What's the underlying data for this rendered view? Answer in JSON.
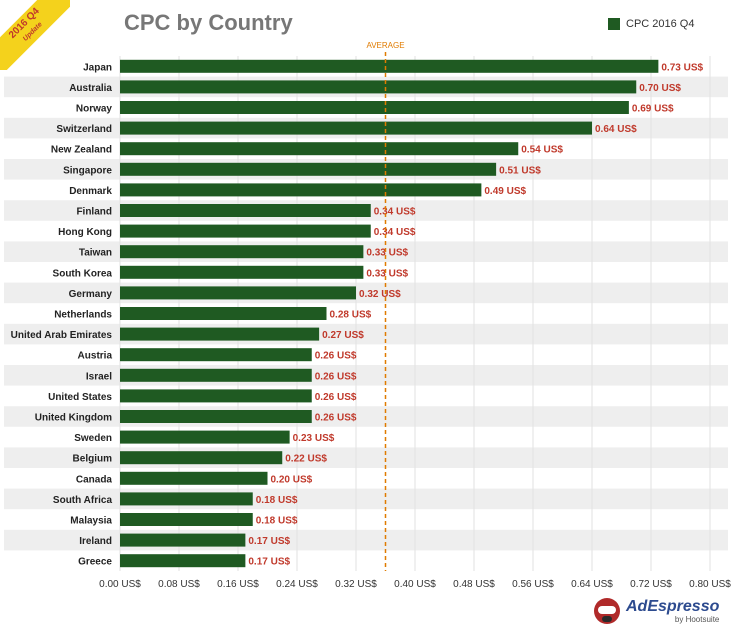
{
  "badge": {
    "line1": "2016 Q4",
    "line2": "Update"
  },
  "legend": {
    "label": "CPC 2016 Q4"
  },
  "logo": {
    "brand": "AdEspresso",
    "sub": "by Hootsuite"
  },
  "colors": {
    "bar": "#1f5a22",
    "value_label": "#c0392b",
    "average_line": "#e07b00",
    "band": "#eeeeee",
    "title": "#777777"
  },
  "chart_data": {
    "type": "bar",
    "orientation": "horizontal",
    "title": "CPC by Country",
    "categories": [
      "Japan",
      "Australia",
      "Norway",
      "Switzerland",
      "New Zealand",
      "Singapore",
      "Denmark",
      "Finland",
      "Hong Kong",
      "Taiwan",
      "South Korea",
      "Germany",
      "Netherlands",
      "United Arab Emirates",
      "Austria",
      "Israel",
      "United States",
      "United Kingdom",
      "Sweden",
      "Belgium",
      "Canada",
      "South Africa",
      "Malaysia",
      "Ireland",
      "Greece"
    ],
    "values": [
      0.73,
      0.7,
      0.69,
      0.64,
      0.54,
      0.51,
      0.49,
      0.34,
      0.34,
      0.33,
      0.33,
      0.32,
      0.28,
      0.27,
      0.26,
      0.26,
      0.26,
      0.26,
      0.23,
      0.22,
      0.2,
      0.18,
      0.18,
      0.17,
      0.17
    ],
    "value_labels": [
      "0.73 US$",
      "0.70 US$",
      "0.69 US$",
      "0.64 US$",
      "0.54 US$",
      "0.51 US$",
      "0.49 US$",
      "0.34 US$",
      "0.34 US$",
      "0.33 US$",
      "0.33 US$",
      "0.32 US$",
      "0.28 US$",
      "0.27 US$",
      "0.26 US$",
      "0.26 US$",
      "0.26 US$",
      "0.26 US$",
      "0.23 US$",
      "0.22 US$",
      "0.20 US$",
      "0.18 US$",
      "0.18 US$",
      "0.17 US$",
      "0.17 US$"
    ],
    "series": [
      {
        "name": "CPC 2016 Q4"
      }
    ],
    "xlim": [
      0,
      0.8
    ],
    "xticks": [
      0,
      0.08,
      0.16,
      0.24,
      0.32,
      0.4,
      0.48,
      0.56,
      0.64,
      0.72,
      0.8
    ],
    "xtick_labels": [
      "0.00 US$",
      "0.08 US$",
      "0.16 US$",
      "0.24 US$",
      "0.32 US$",
      "0.40 US$",
      "0.48 US$",
      "0.56 US$",
      "0.64 US$",
      "0.72 US$",
      "0.80 US$"
    ],
    "average": {
      "label": "AVERAGE",
      "value": 0.36
    },
    "legend_position": "top-right",
    "grid": true
  }
}
